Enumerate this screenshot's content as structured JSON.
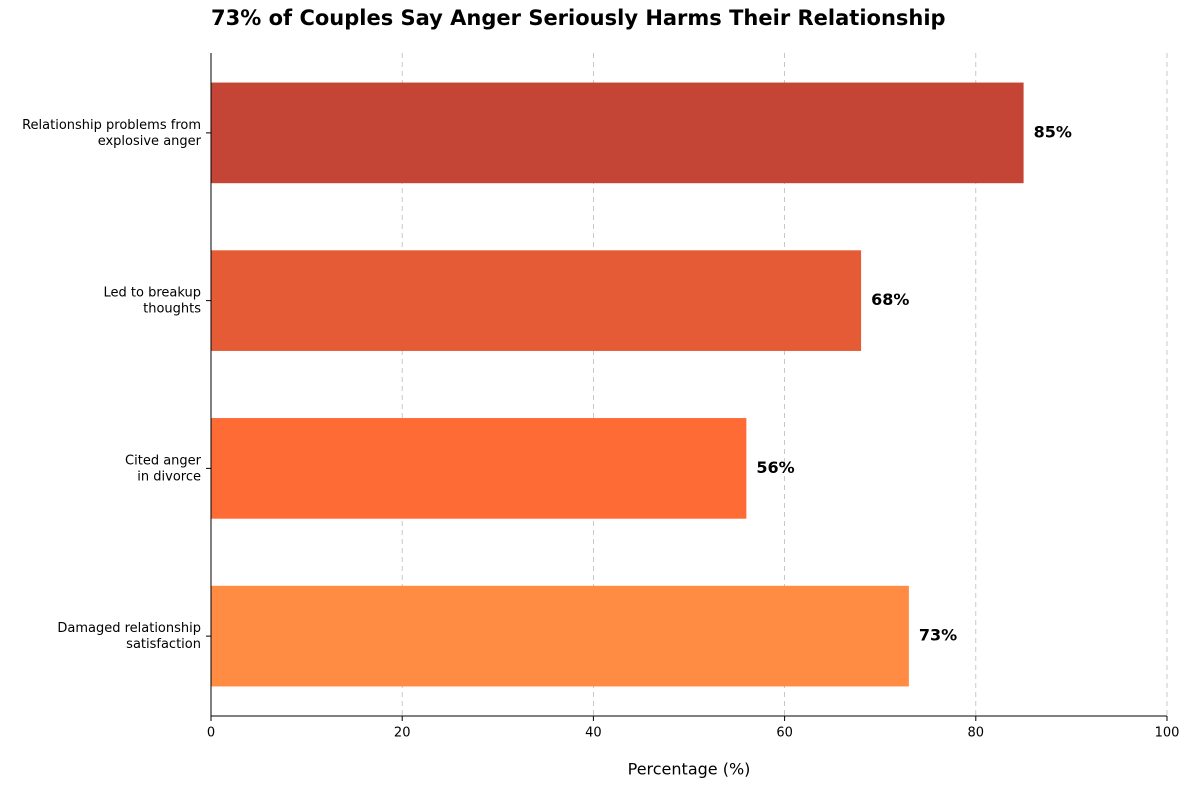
{
  "chart_data": {
    "type": "barh",
    "title": "73% of Couples Say Anger Seriously Harms Their Relationship",
    "xlabel": "Percentage (%)",
    "categories": [
      "Relationship problems from\nexplosive anger",
      "Led to breakup\nthoughts",
      "Cited anger\nin divorce",
      "Damaged relationship\nsatisfaction"
    ],
    "values": [
      85,
      68,
      56,
      73
    ],
    "value_labels": [
      "85%",
      "68%",
      "56%",
      "73%"
    ],
    "colors": [
      "#c44536",
      "#e55b36",
      "#ff6b35",
      "#ff8c42"
    ],
    "xlim": [
      0,
      100
    ],
    "xticks": [
      0,
      20,
      40,
      60,
      80,
      100
    ],
    "grid": true
  }
}
